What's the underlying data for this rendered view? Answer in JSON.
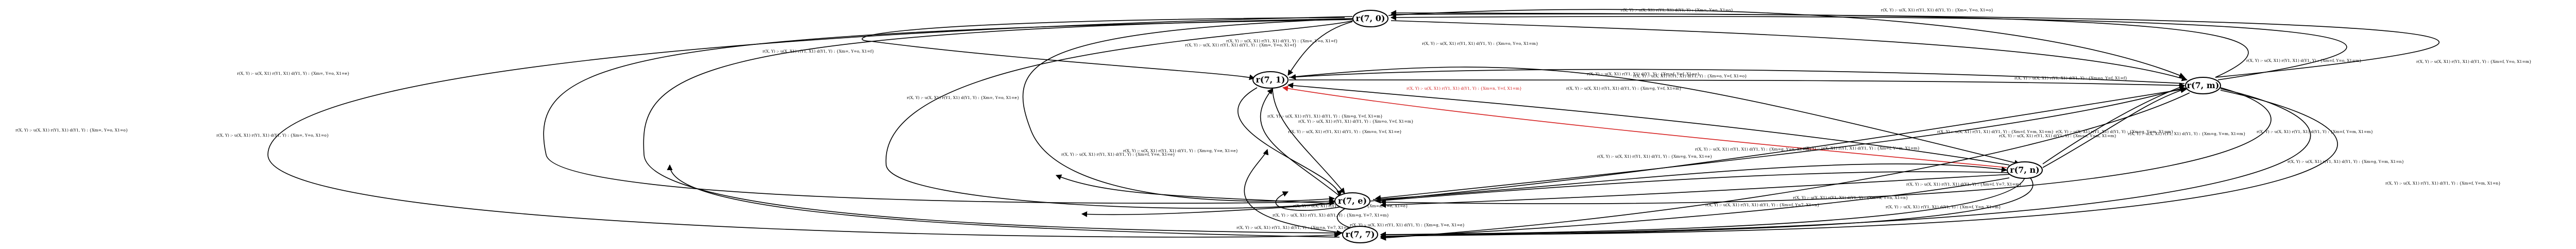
{
  "nodes": [
    {
      "id": "t0",
      "label": "r(7, 0)"
    },
    {
      "id": "t1",
      "label": "r(7, 1)"
    },
    {
      "id": "t2",
      "label": "r(7, m)"
    },
    {
      "id": "t3",
      "label": "r(7, n)"
    },
    {
      "id": "t4",
      "label": "r(7, e)"
    },
    {
      "id": "t5",
      "label": "r(7, 7)"
    }
  ],
  "edges": [
    {
      "id": "e1",
      "label": "r(X, Y) :- u(X, X1) r(Y1, X1) d(Y1, Y) : {Xm=, Y=o, X1=o}",
      "highlight": false
    },
    {
      "id": "e2",
      "label": "r(X, Y) :- u(X, X1) r(Y1, X1) d(Y1, Y) : {Xm=, Y=o, X1=o}",
      "highlight": false
    },
    {
      "id": "e3",
      "label": "r(X, Y) :- u(X, X1) r(Y1, X1) d(Y1, Y) : {Xm=, Y=o, X1=e}",
      "highlight": false
    },
    {
      "id": "e4",
      "label": "r(X, Y) :- u(X, X1) r(Y1, X1) d(Y1, Y) : {Xm=, Y=o, X1=f}",
      "highlight": false
    },
    {
      "id": "e5",
      "label": "r(X, Y) :- u(X, X1) r(Y1, X1) d(Y1, Y) : {Xm=, Y=o, X1=f}",
      "highlight": false
    },
    {
      "id": "e6",
      "label": "r(X, Y) :- u(X, X1) r(Y1, X1) d(Y1, Y) : {Xm=o, Y=o, X1=m}",
      "highlight": false
    },
    {
      "id": "e7",
      "label": "r(X, Y) :- u(X, X1) r(Y1, X1) d(Y1, Y) : {Xm=f, Y=o, X1=m}",
      "highlight": false
    },
    {
      "id": "e8",
      "label": "r(X, Y) :- u(X, X1) r(Y1, X1) d(Y1, Y) : {Xm=f, Y=o, X1=m}",
      "highlight": false
    },
    {
      "id": "e9",
      "label": "r(X, Y) :- u(X, X1) r(Y1, X1) d(Y1, Y) : {Xm=, Y=o, X1=o}",
      "highlight": false
    },
    {
      "id": "e10",
      "label": "r(X, Y) :- u(X, X1) r(Y1, X1) d(Y1, Y) : {Xm=, Y=o, X1=e}",
      "highlight": false
    },
    {
      "id": "e11",
      "label": "r(X, Y) :- u(X, X1) r(Y1, X1) d(Y1, Y) : {Xm=, Y=o, X1=f}",
      "highlight": false
    },
    {
      "id": "e12",
      "label": "r(X, Y) :- u(X, X1) r(Y1, X1) d(Y1, Y) : {Xm=, Y=o, X1=o}",
      "highlight": false
    },
    {
      "id": "e13",
      "label": "r(X, Y) :- u(X, X1) r(Y1, X1) d(Y1, Y) : {Xm=o, Y=f, X1=f}",
      "highlight": false
    },
    {
      "id": "e14",
      "label": "r(X, Y) :- u(X, X1) r(Y1, X1) d(Y1, Y) : {Xm=o, Y=f, X1=o}",
      "highlight": false
    },
    {
      "id": "e15",
      "label": "r(X, Y) :- u(X, X1) r(Y1, X1) d(Y1, Y) : {Xm=f, Y=f, X1=o}",
      "highlight": false
    },
    {
      "id": "e16",
      "label": "r(X, Y) :- u(X, X1) r(Y1, X1) d(Y1, Y) : {Xm=g, Y=f, X1=m}",
      "highlight": false
    },
    {
      "id": "e17",
      "label": "r(X, Y) :- u(X, X1) r(Y1, X1) d(Y1, Y) : {Xm=n, Y=f, X1=m}",
      "highlight": true
    },
    {
      "id": "e18",
      "label": "r(X, Y) :- u(X, X1) r(Y1, X1) d(Y1, Y) : {Xm=g, Y=f, X1=m}",
      "highlight": false
    },
    {
      "id": "e19",
      "label": "r(X, Y) :- u(X, X1) r(Y1, X1) d(Y1, Y) : {Xm=o, Y=f, X1=m}",
      "highlight": false
    },
    {
      "id": "e20",
      "label": "r(X, Y) :- u(X, X1) r(Y1, X1) d(Y1, Y) : {Xm=o, Y=f, X1=e}",
      "highlight": false
    },
    {
      "id": "e21",
      "label": "r(X, Y) :- u(X, X1) r(Y1, X1) d(Y1, Y) : {Xm=g, Y=m, X1=m}",
      "highlight": false
    },
    {
      "id": "e22",
      "label": "r(X, Y) :- u(X, X1) r(Y1, X1) d(Y1, Y) : {Xm=f, Y=m, X1=m}",
      "highlight": false
    },
    {
      "id": "e23",
      "label": "r(X, Y) :- u(X, X1) r(Y1, X1) d(Y1, Y) : {Xm=g, Y=m, X1=m}",
      "highlight": false
    },
    {
      "id": "e24",
      "label": "r(X, Y) :- u(X, X1) r(Y1, X1) d(Y1, Y) : {Xm=f, Y=m, X1=m}",
      "highlight": false
    },
    {
      "id": "e25",
      "label": "r(X, Y) :- u(X, X1) r(Y1, X1) d(Y1, Y) : {Xm=g, Y=m, X1=n}",
      "highlight": false
    },
    {
      "id": "e26",
      "label": "r(X, Y) :- u(X, X1) r(Y1, X1) d(Y1, Y) : {Xm=e, Y=m, X1=m}",
      "highlight": false
    },
    {
      "id": "e27",
      "label": "r(X, Y) :- u(X, X1) r(Y1, X1) d(Y1, Y) : {Xm=f, Y=m, X1=m}",
      "highlight": false
    },
    {
      "id": "e28",
      "label": "r(X, Y) :- u(X, X1) r(Y1, X1) d(Y1, Y) : {Xm=f, Y=m, X1=n}",
      "highlight": false
    },
    {
      "id": "e29",
      "label": "r(X, Y) :- u(X, X1) r(Y1, X1) d(Y1, Y) : {Xm=g, Y=n, X1=m}",
      "highlight": false
    },
    {
      "id": "e30",
      "label": "r(X, Y) :- u(X, X1) r(Y1, X1) d(Y1, Y) : {Xm=g, Y=n, X1=e}",
      "highlight": false
    },
    {
      "id": "e31",
      "label": "r(X, Y) :- u(X, X1) r(Y1, X1) d(Y1, Y) : {Xm=a, Y=n, X1=n}",
      "highlight": false
    },
    {
      "id": "e32",
      "label": "r(X, Y) :- u(X, X1) r(Y1, X1) d(Y1, Y) : {Xm=f, Y=n, X1=m}",
      "highlight": false
    },
    {
      "id": "e33",
      "label": "r(X, Y) :- u(X, X1) r(Y1, X1) d(Y1, Y) : {Xm=a, Y=e, X1=e}",
      "highlight": false
    },
    {
      "id": "e34",
      "label": "r(X, Y) :- u(X, X1) r(Y1, X1) d(Y1, Y) : {Xm=g, Y=e, X1=e}",
      "highlight": false
    },
    {
      "id": "e35",
      "label": "r(X, Y) :- u(X, X1) r(Y1, X1) d(Y1, Y) : {Xm=g, Y=e, X1=e}",
      "highlight": false
    },
    {
      "id": "e36",
      "label": "r(X, Y) :- u(X, X1) r(Y1, X1) d(Y1, Y) : {Xm=f, Y=e, X1=e}",
      "highlight": false
    },
    {
      "id": "e37",
      "label": "r(X, Y) :- u(X, X1) r(Y1, X1) d(Y1, Y) : {Xm=g, Y=7, X1=m}",
      "highlight": false
    },
    {
      "id": "e38",
      "label": "r(X, Y) :- u(X, X1) r(Y1, X1) d(Y1, Y) : {Xm=a, Y=7, X1=e}",
      "highlight": false
    },
    {
      "id": "e39",
      "label": "r(X, Y) :- u(X, X1) r(Y1, X1) d(Y1, Y) : {Xm=f, Y=7, X1=n}",
      "highlight": false
    },
    {
      "id": "e40",
      "label": "r(X, Y) :- u(X, X1) r(Y1, X1) d(Y1, Y) : {Xm=f, Y=7, X1=m}",
      "highlight": false
    }
  ],
  "colors": {
    "edge": "#000000",
    "highlight": "#d62020",
    "node_fill": "#ffffff"
  }
}
